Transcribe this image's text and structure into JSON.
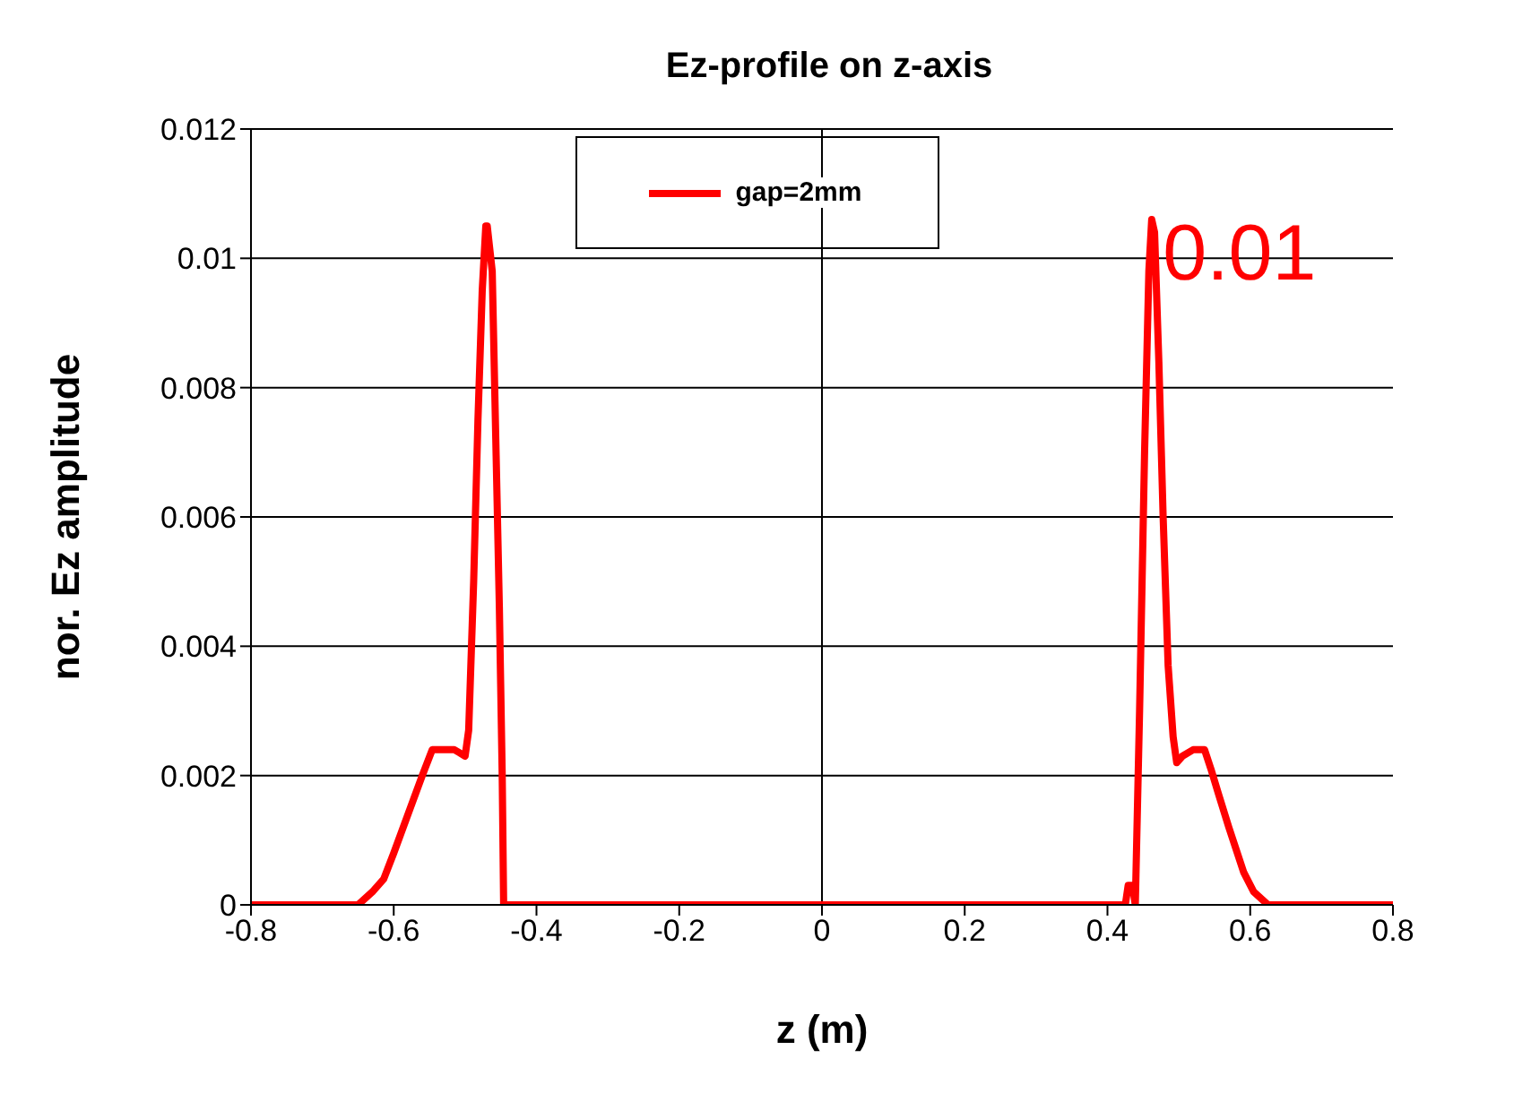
{
  "chart_data": {
    "type": "line",
    "title": "Ez-profile on z-axis",
    "xlabel": "z (m)",
    "ylabel": "nor. Ez amplitude",
    "series": [
      {
        "name": "gap=2mm",
        "color": "#ff0000",
        "x": [
          -0.8,
          -0.7,
          -0.65,
          -0.64,
          -0.63,
          -0.614,
          -0.6,
          -0.58,
          -0.56,
          -0.546,
          -0.53,
          -0.515,
          -0.5,
          -0.495,
          -0.488,
          -0.482,
          -0.476,
          -0.471,
          -0.469,
          -0.466,
          -0.462,
          -0.457,
          -0.452,
          -0.448,
          -0.446,
          -0.44,
          -0.4,
          -0.35,
          -0.3,
          -0.25,
          -0.2,
          -0.15,
          -0.1,
          -0.05,
          0,
          0.05,
          0.1,
          0.15,
          0.2,
          0.25,
          0.3,
          0.35,
          0.4,
          0.425,
          0.429,
          0.435,
          0.439,
          0.445,
          0.452,
          0.458,
          0.462,
          0.466,
          0.472,
          0.478,
          0.485,
          0.492,
          0.497,
          0.505,
          0.52,
          0.536,
          0.545,
          0.556,
          0.57,
          0.591,
          0.605,
          0.625,
          0.65,
          0.7,
          0.8
        ],
        "values": [
          0,
          0,
          0,
          0.0001,
          0.0002,
          0.0004,
          0.0008,
          0.0014,
          0.002,
          0.0024,
          0.0024,
          0.0024,
          0.0023,
          0.0027,
          0.005,
          0.0075,
          0.0095,
          0.0105,
          0.0105,
          0.0102,
          0.0098,
          0.0072,
          0.0046,
          0.002,
          0,
          0,
          0,
          0,
          0,
          0,
          0,
          0,
          0,
          0,
          0,
          0,
          0,
          0,
          0,
          0,
          0,
          0,
          0,
          0,
          0.0003,
          0.0003,
          0,
          0.003,
          0.007,
          0.0098,
          0.0106,
          0.0104,
          0.0084,
          0.006,
          0.0037,
          0.0026,
          0.0022,
          0.0023,
          0.0024,
          0.0024,
          0.0021,
          0.0017,
          0.0012,
          0.0005,
          0.0002,
          0,
          0,
          0,
          0
        ]
      }
    ],
    "xlim": [
      -0.8,
      0.8
    ],
    "xticks": [
      -0.8,
      -0.6,
      -0.4,
      -0.2,
      0,
      0.2,
      0.4,
      0.6,
      0.8
    ],
    "ylim": [
      0,
      0.012
    ],
    "yticks": [
      0,
      0.002,
      0.004,
      0.006,
      0.008,
      0.01,
      0.012
    ],
    "grid": "y",
    "legend": "top",
    "marker": "none",
    "line_style": "solid",
    "ref_lines": [
      {
        "axis": "x",
        "value": 0,
        "color": "#000000"
      }
    ],
    "annotations": [
      {
        "text": "0.01",
        "x": 0.47,
        "y": 0.01
      }
    ]
  }
}
